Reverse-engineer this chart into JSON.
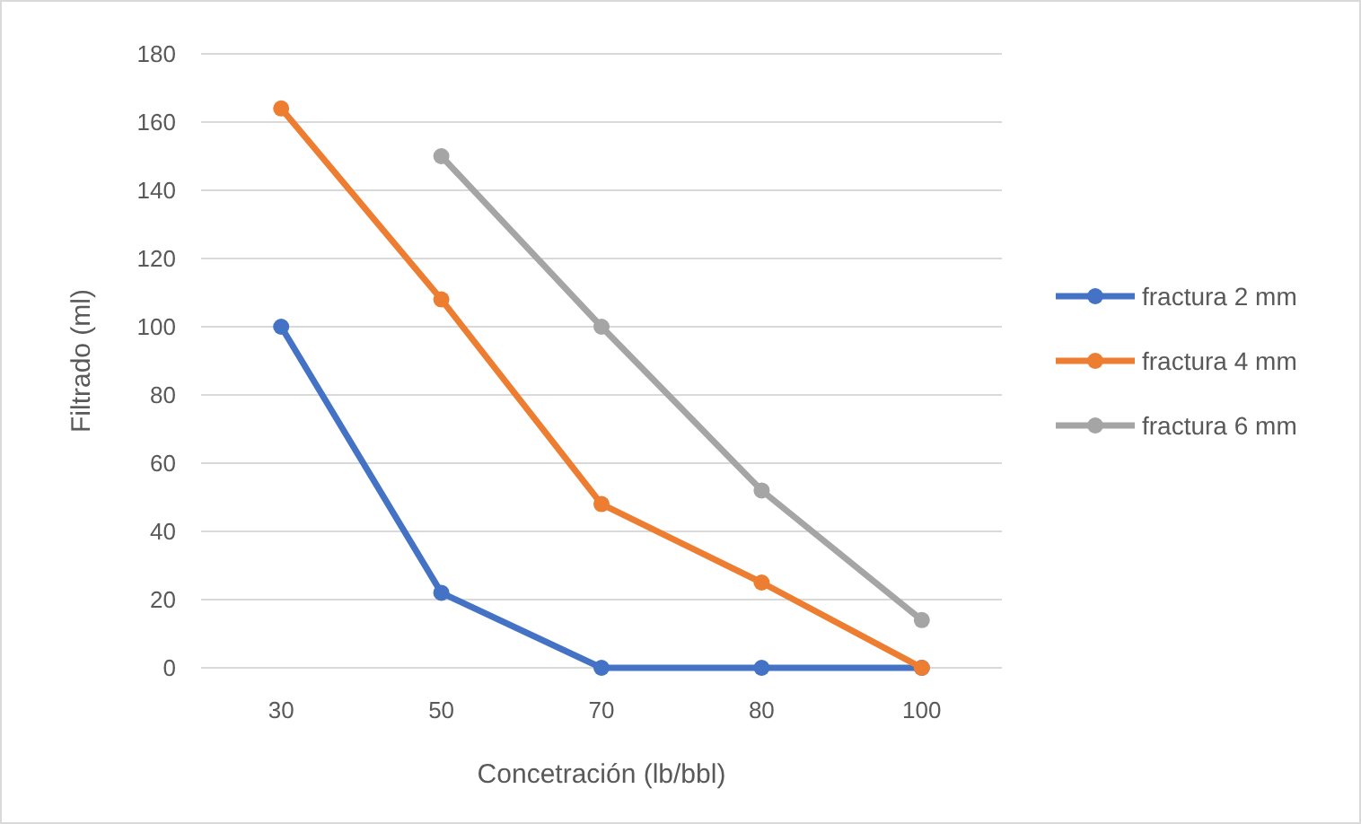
{
  "chart_data": {
    "type": "line",
    "xlabel": "Concetración (lb/bbl)",
    "ylabel": "Filtrado (ml)",
    "categories": [
      "30",
      "50",
      "70",
      "80",
      "100"
    ],
    "series": [
      {
        "name": "fractura 2 mm",
        "color": "#4472c4",
        "values": [
          100,
          22,
          0,
          0,
          0
        ]
      },
      {
        "name": "fractura 4 mm",
        "color": "#ed7d31",
        "values": [
          164,
          108,
          48,
          25,
          0
        ]
      },
      {
        "name": "fractura 6 mm",
        "color": "#a5a5a5",
        "values": [
          null,
          150,
          100,
          52,
          14
        ]
      }
    ],
    "ylim": [
      0,
      180
    ],
    "yticks": [
      0,
      20,
      40,
      60,
      80,
      100,
      120,
      140,
      160,
      180
    ],
    "grid": "y",
    "legend": "right",
    "marker": "circle"
  }
}
